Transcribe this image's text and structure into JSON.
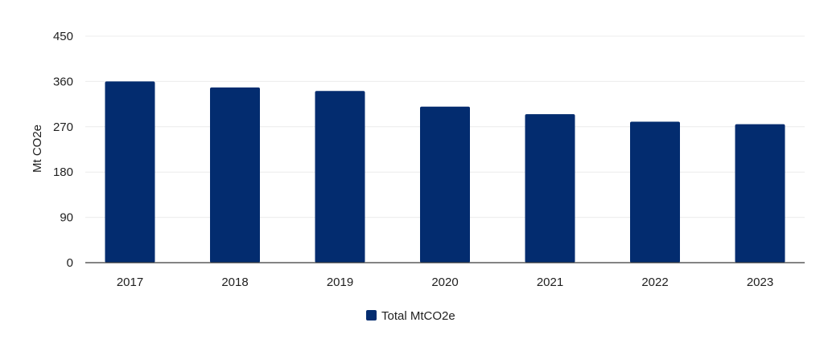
{
  "chart_data": {
    "type": "bar",
    "title": "",
    "xlabel": "",
    "ylabel": "Mt CO2e",
    "categories": [
      "2017",
      "2018",
      "2019",
      "2020",
      "2021",
      "2022",
      "2023"
    ],
    "series": [
      {
        "name": "Total MtCO2e",
        "color": "#032c6f",
        "values": [
          360,
          348,
          341,
          310,
          295,
          280,
          275
        ]
      }
    ],
    "ylim": [
      0,
      450
    ],
    "yticks": [
      "0",
      "90",
      "180",
      "270",
      "360",
      "450"
    ],
    "grid": true,
    "legend": "bottom-center"
  }
}
